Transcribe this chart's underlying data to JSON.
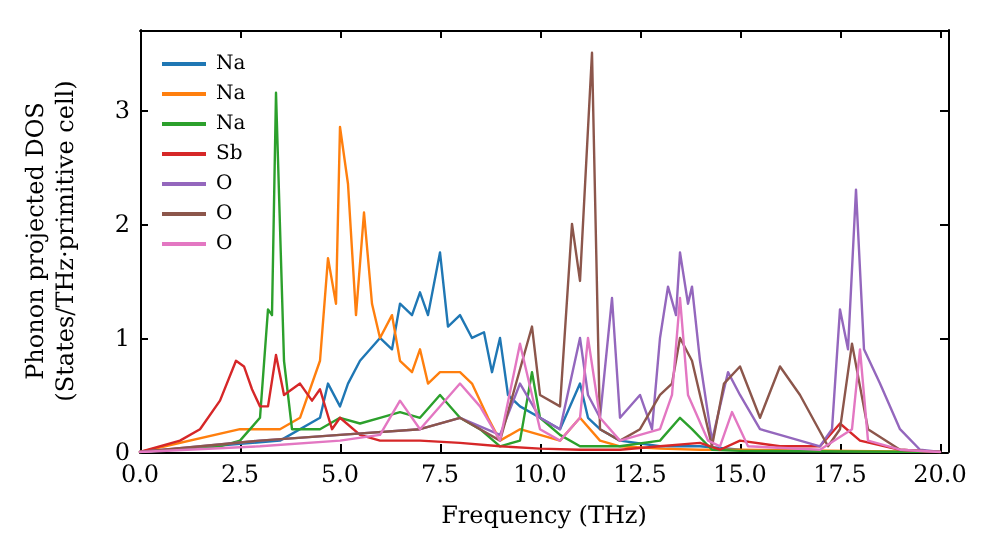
{
  "chart_data": {
    "type": "line",
    "xlabel": "Frequency (THz)",
    "ylabel": "Phonon projected DOS\n(States/THz·primitive cell)",
    "xlim": [
      0,
      20.2
    ],
    "ylim": [
      0,
      3.7
    ],
    "xticks": [
      {
        "value": 0,
        "label": "0.0"
      },
      2.5,
      {
        "value": 5,
        "label": "5.0"
      },
      7.5,
      {
        "value": 10,
        "label": "10.0"
      },
      12.5,
      {
        "value": 15,
        "label": "15.0"
      },
      17.5,
      {
        "value": 20,
        "label": "20.0"
      }
    ],
    "yticks": [
      0,
      1,
      2,
      3
    ],
    "grid": false,
    "legend": "top left",
    "marker": "none",
    "line_style": "solid",
    "series": [
      {
        "name": "Na",
        "color": "#1f77b4",
        "x": [
          0,
          3.5,
          4.5,
          4.7,
          5.0,
          5.2,
          5.5,
          6.0,
          6.3,
          6.5,
          6.8,
          7.0,
          7.2,
          7.5,
          7.7,
          8.0,
          8.3,
          8.6,
          8.8,
          9.0,
          9.2,
          9.5,
          10.0,
          10.5,
          11.0,
          11.2,
          11.5,
          12,
          13,
          14,
          15
        ],
        "values": [
          0,
          0.1,
          0.3,
          0.6,
          0.4,
          0.6,
          0.8,
          1.0,
          0.9,
          1.3,
          1.2,
          1.4,
          1.2,
          1.75,
          1.1,
          1.2,
          1.0,
          1.05,
          0.7,
          1.0,
          0.5,
          0.4,
          0.3,
          0.2,
          0.6,
          0.3,
          0.2,
          0.1,
          0.05,
          0.05,
          0.02
        ]
      },
      {
        "name": "Na",
        "color": "#ff7f0e",
        "x": [
          0,
          2.5,
          3.5,
          4,
          4.5,
          4.7,
          4.9,
          5.0,
          5.2,
          5.4,
          5.6,
          5.8,
          6.0,
          6.3,
          6.5,
          6.8,
          7.0,
          7.2,
          7.5,
          8.0,
          8.3,
          8.7,
          9.0,
          9.5,
          10,
          10.5,
          11,
          11.5,
          12,
          13,
          14,
          15,
          20
        ],
        "values": [
          0,
          0.2,
          0.2,
          0.3,
          0.8,
          1.7,
          1.3,
          2.85,
          2.35,
          1.2,
          2.1,
          1.3,
          1.0,
          1.2,
          0.8,
          0.7,
          0.9,
          0.6,
          0.7,
          0.7,
          0.6,
          0.3,
          0.1,
          0.2,
          0.15,
          0.1,
          0.3,
          0.1,
          0.05,
          0.03,
          0.02,
          0.02,
          0
        ]
      },
      {
        "name": "Na",
        "color": "#2ca02c",
        "x": [
          0,
          2,
          2.5,
          3.0,
          3.2,
          3.3,
          3.4,
          3.6,
          3.8,
          4.0,
          4.5,
          5,
          5.5,
          6,
          6.5,
          7,
          7.5,
          8,
          8.5,
          9,
          9.5,
          9.8,
          10,
          10.5,
          11,
          12,
          13,
          13.5,
          13.8,
          14.3,
          15,
          20
        ],
        "values": [
          0,
          0.05,
          0.1,
          0.3,
          1.25,
          1.2,
          3.15,
          0.8,
          0.2,
          0.2,
          0.2,
          0.3,
          0.25,
          0.3,
          0.35,
          0.3,
          0.5,
          0.3,
          0.2,
          0.05,
          0.1,
          0.7,
          0.3,
          0.15,
          0.05,
          0.05,
          0.1,
          0.3,
          0.2,
          0.02,
          0.01,
          0
        ]
      },
      {
        "name": "Sb",
        "color": "#d62728",
        "x": [
          0,
          1,
          1.5,
          2.0,
          2.4,
          2.6,
          2.8,
          3.0,
          3.2,
          3.4,
          3.6,
          4.0,
          4.3,
          4.5,
          4.8,
          5,
          5.5,
          6,
          7,
          8,
          9,
          10,
          11,
          12,
          13,
          14,
          14.5,
          15,
          16,
          17,
          17.5,
          18,
          19,
          20
        ],
        "values": [
          0,
          0.1,
          0.2,
          0.45,
          0.8,
          0.75,
          0.55,
          0.4,
          0.4,
          0.85,
          0.5,
          0.6,
          0.45,
          0.55,
          0.2,
          0.3,
          0.15,
          0.1,
          0.1,
          0.08,
          0.05,
          0.03,
          0.02,
          0.02,
          0.05,
          0.08,
          0.02,
          0.1,
          0.05,
          0.05,
          0.25,
          0.1,
          0.02,
          0
        ]
      },
      {
        "name": "O",
        "color": "#9467bd",
        "x": [
          0,
          3,
          5,
          7,
          8,
          9,
          9.5,
          10,
          10.5,
          11,
          11.2,
          11.5,
          11.8,
          12,
          12.5,
          12.8,
          13.0,
          13.2,
          13.4,
          13.5,
          13.7,
          13.8,
          14,
          14.3,
          14.7,
          15,
          15.5,
          16,
          17,
          17.3,
          17.5,
          17.7,
          17.9,
          18.1,
          18.5,
          19,
          19.5,
          20
        ],
        "values": [
          0,
          0.1,
          0.15,
          0.2,
          0.3,
          0.15,
          0.6,
          0.3,
          0.2,
          1.0,
          0.5,
          0.3,
          1.35,
          0.3,
          0.5,
          0.2,
          1.0,
          1.45,
          1.2,
          1.75,
          1.3,
          1.45,
          0.8,
          0.1,
          0.7,
          0.5,
          0.2,
          0.15,
          0.05,
          0.2,
          1.25,
          0.9,
          2.3,
          0.9,
          0.6,
          0.2,
          0.02,
          0
        ]
      },
      {
        "name": "O",
        "color": "#8c564b",
        "x": [
          0,
          3,
          5,
          7,
          8,
          9,
          9.8,
          10,
          10.5,
          10.8,
          11.0,
          11.3,
          11.5,
          12,
          12.5,
          13,
          13.3,
          13.5,
          13.8,
          14.3,
          14.6,
          15.0,
          15.5,
          16.0,
          16.5,
          17.2,
          17.5,
          17.8,
          18.2,
          19,
          20
        ],
        "values": [
          0,
          0.1,
          0.15,
          0.2,
          0.3,
          0.1,
          1.1,
          0.5,
          0.4,
          2.0,
          1.5,
          3.5,
          0.2,
          0.1,
          0.2,
          0.5,
          0.6,
          1.0,
          0.8,
          0.05,
          0.6,
          0.75,
          0.3,
          0.75,
          0.5,
          0.05,
          0.2,
          0.95,
          0.2,
          0.02,
          0
        ]
      },
      {
        "name": "O",
        "color": "#e377c2",
        "x": [
          0,
          3,
          5,
          6,
          6.5,
          7,
          8,
          8.5,
          9,
          9.5,
          10,
          10.5,
          11,
          11.2,
          11.5,
          12,
          13,
          13.3,
          13.5,
          13.7,
          14.2,
          14.5,
          14.8,
          15.2,
          17,
          17.8,
          18.0,
          18.2,
          19,
          20
        ],
        "values": [
          0,
          0.05,
          0.1,
          0.15,
          0.45,
          0.2,
          0.6,
          0.4,
          0.1,
          0.95,
          0.2,
          0.1,
          0.3,
          1.0,
          0.3,
          0.1,
          0.2,
          0.5,
          1.35,
          0.5,
          0.1,
          0.05,
          0.35,
          0.05,
          0.02,
          0.2,
          0.9,
          0.1,
          0.02,
          0
        ]
      }
    ]
  }
}
